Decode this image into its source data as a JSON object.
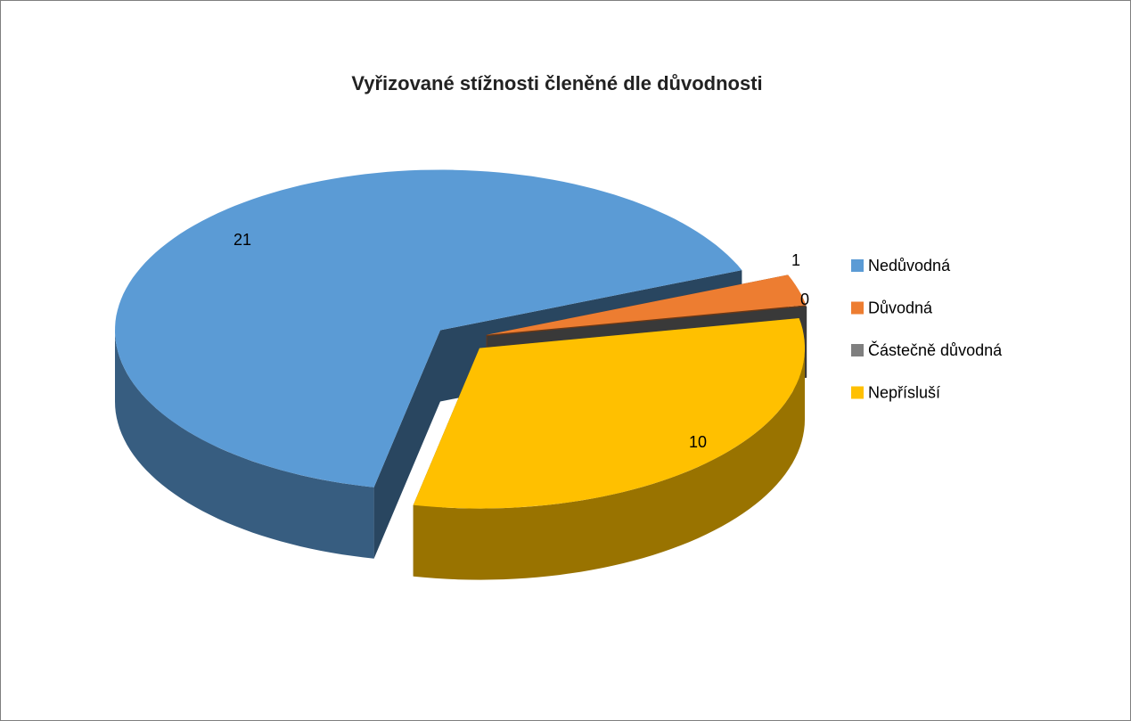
{
  "chart_data": {
    "type": "pie",
    "title": "Vyřizované stížnosti členěné dle důvodnosti",
    "categories": [
      "Nedůvodná",
      "Důvodná",
      "Částečně důvodná",
      "Nepřísluší"
    ],
    "values": [
      21,
      1,
      0,
      10
    ],
    "colors": [
      "#5b9bd5",
      "#ed7d31",
      "#7f7f7f",
      "#ffc000"
    ],
    "legend": "right",
    "style": "3d-exploded"
  }
}
